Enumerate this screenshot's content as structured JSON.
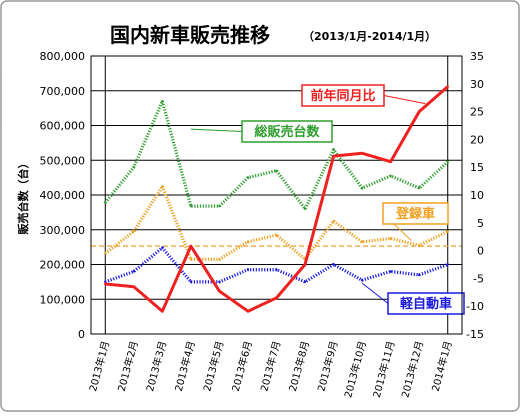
{
  "chart_data": {
    "type": "line",
    "title": "国内新車販売推移",
    "subtitle": "（2013/1月-2014/1月）",
    "ylabel": "販売台数（台）",
    "y2label": "",
    "x": [
      "2013年1月",
      "2013年2月",
      "2013年3月",
      "2013年4月",
      "2013年5月",
      "2013年6月",
      "2013年7月",
      "2013年8月",
      "2013年9月",
      "2013年10月",
      "2013年11月",
      "2013年12月",
      "2014年1月"
    ],
    "ylim": [
      0,
      800000
    ],
    "y_ticks": [
      "0",
      "100,000",
      "200,000",
      "300,000",
      "400,000",
      "500,000",
      "600,000",
      "700,000",
      "800,000"
    ],
    "y2lim": [
      -15,
      35
    ],
    "y2_ticks": [
      "-15",
      "-10",
      "-5",
      "0",
      "5",
      "10",
      "15",
      "20",
      "25",
      "30",
      "35"
    ],
    "grid": true,
    "series": [
      {
        "name": "総販売台数",
        "axis": "left",
        "style": "dotted",
        "color": "#2e9e2e",
        "values": [
          378000,
          480000,
          670000,
          368000,
          368000,
          450000,
          470000,
          360000,
          530000,
          420000,
          455000,
          420000,
          495000
        ]
      },
      {
        "name": "登録車",
        "axis": "left",
        "style": "dotted",
        "color": "#f0a020",
        "values": [
          232000,
          295000,
          425000,
          215000,
          215000,
          265000,
          285000,
          215000,
          325000,
          265000,
          275000,
          255000,
          295000
        ]
      },
      {
        "name": "軽自動車",
        "axis": "left",
        "style": "dotted",
        "color": "#1a1adf",
        "values": [
          150000,
          180000,
          248000,
          150000,
          150000,
          185000,
          185000,
          150000,
          200000,
          155000,
          180000,
          170000,
          200000
        ]
      },
      {
        "name": "前年同月比",
        "axis": "right",
        "style": "solid",
        "color": "#ee2020",
        "values": [
          -6.0,
          -6.5,
          -10.9,
          0.8,
          -7.3,
          -10.9,
          -8.5,
          -2.5,
          17.0,
          17.5,
          16.0,
          25.0,
          29.5
        ]
      }
    ],
    "reference_line": {
      "axis": "right",
      "value": 0.8,
      "color": "#e8a030",
      "style": "dashed"
    },
    "vline_after": "2014年1月",
    "colors": {
      "background": "#ffffff",
      "plot_border": "#000000",
      "frame_border": "#9a9a9a"
    }
  }
}
